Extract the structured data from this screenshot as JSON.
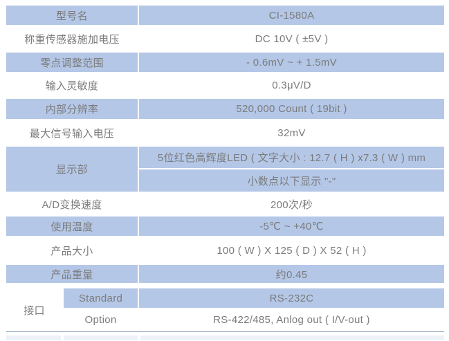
{
  "table": {
    "rows_top": [
      {
        "label": "型号名",
        "value": "CI-1580A"
      },
      {
        "label": "称重传感器施加电压",
        "value": "DC 10V ( ±5V )"
      },
      {
        "label": "零点调整范围",
        "value": "- 0.6mV ~ + 1.5mV"
      },
      {
        "label": "输入灵敏度",
        "value": "0.3μV/D"
      },
      {
        "label": "内部分辨率",
        "value": "520,000 Count ( 19bit )"
      },
      {
        "label": "最大信号输入电压",
        "value": "32mV"
      }
    ],
    "display_section": {
      "label": "显示部",
      "line1": "5位红色高辉度LED ( 文字大小 : 12.7 ( H ) x7.3 ( W ) mm",
      "line2": "小数点以下显示 \"-\""
    },
    "rows_bottom": [
      {
        "label": "A/D变换速度",
        "value": "200次/秒"
      },
      {
        "label": "使用温度",
        "value": "-5℃ ~ +40℃"
      },
      {
        "label": "产品大小",
        "value": "100 ( W ) X 125 ( D ) X 52 ( H )"
      },
      {
        "label": "产品重量",
        "value": "约0.45"
      }
    ],
    "interface_section": {
      "label": "接口",
      "rows": [
        {
          "name": "Standard",
          "value": "RS-232C"
        },
        {
          "name": "Option",
          "value": "RS-422/485, Anlog out ( I/V-out )"
        }
      ]
    },
    "colors": {
      "row_blue": "#b4c7e7",
      "text_gray": "#7b7b7b",
      "bottom_line": "#9fb0c7",
      "partial_row": "#edf1f8"
    }
  }
}
